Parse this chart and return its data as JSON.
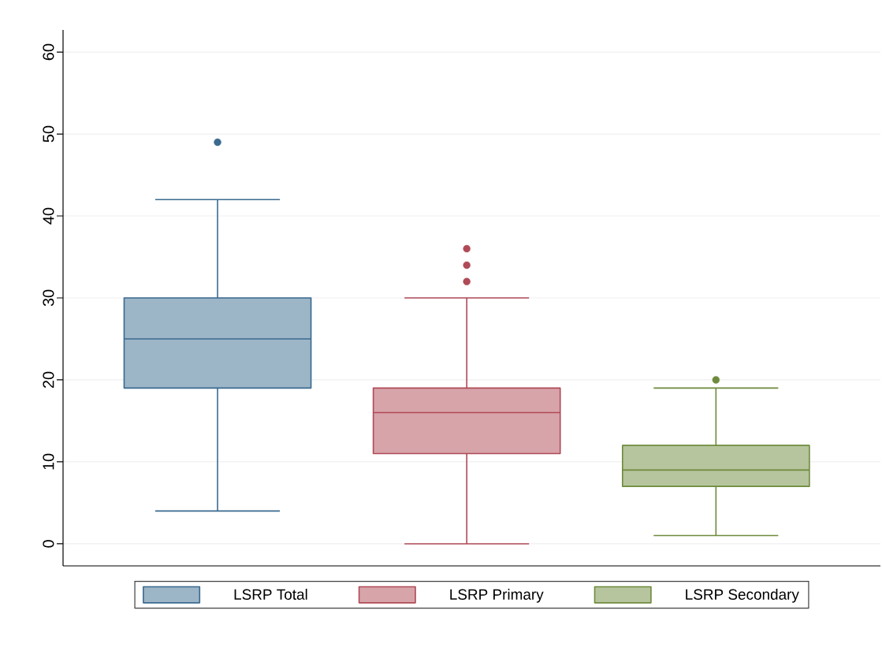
{
  "chart_data": {
    "type": "box",
    "categories": [
      null
    ],
    "series": [
      {
        "name": "LSRP Total",
        "color": "#3a6a8f",
        "boxes": [
          {
            "low": 4,
            "q1": 19,
            "median": 25,
            "q3": 30,
            "high": 42,
            "outliers": [
              49
            ]
          }
        ]
      },
      {
        "name": "LSRP Primary",
        "color": "#b04a56",
        "boxes": [
          {
            "low": 0,
            "q1": 11,
            "median": 16,
            "q3": 19,
            "high": 30,
            "outliers": [
              32,
              34,
              36
            ]
          }
        ]
      },
      {
        "name": "LSRP Secondary",
        "color": "#6e8a3c",
        "boxes": [
          {
            "low": 1,
            "q1": 7,
            "median": 9,
            "q3": 12,
            "high": 19,
            "outliers": [
              20
            ]
          }
        ]
      }
    ],
    "ylim": [
      -2.7,
      62.7
    ],
    "yticks": [
      0,
      10,
      20,
      30,
      40,
      50,
      60
    ],
    "grid": "y",
    "legend": "bottom",
    "tick_labels": "y"
  }
}
